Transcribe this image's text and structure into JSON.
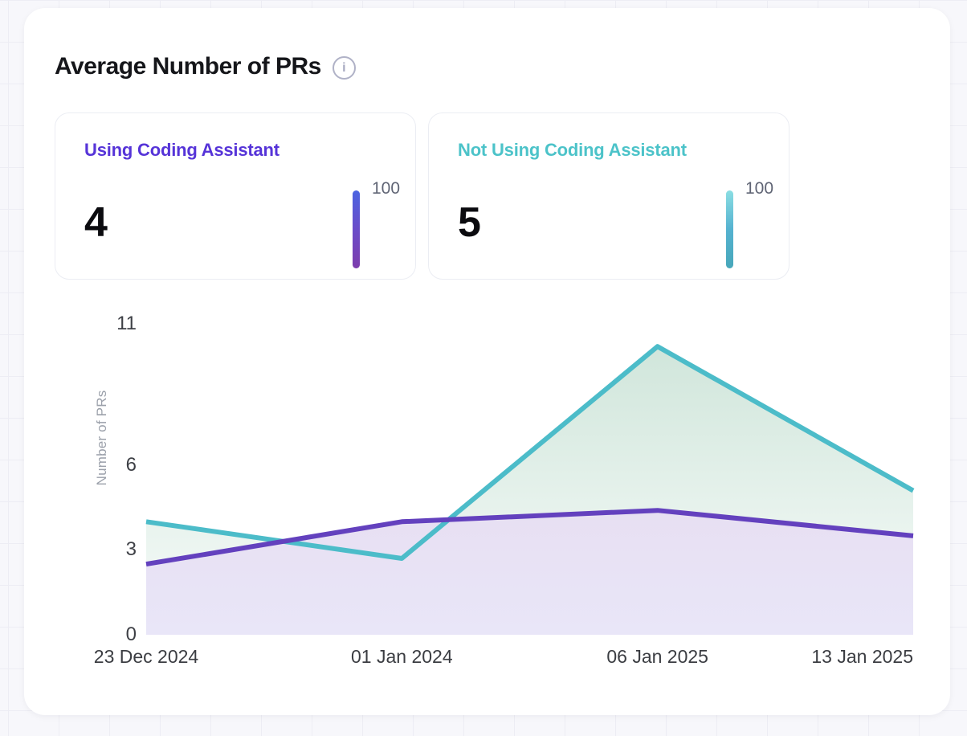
{
  "panel": {
    "title": "Average Number of PRs",
    "info_icon_glyph": "i"
  },
  "stat_cards": [
    {
      "label": "Using Coding Assistant",
      "value": "4",
      "scale_max_label": "100",
      "label_color": "#5634d8",
      "bar_gradient": [
        "#4b64e1",
        "#6a4cc9",
        "#7d3dad"
      ]
    },
    {
      "label": "Not Using Coding Assistant",
      "value": "5",
      "scale_max_label": "100",
      "label_color": "#4cc3c9",
      "bar_gradient": [
        "#8bdee3",
        "#55b2d0",
        "#47a7ba"
      ]
    }
  ],
  "chart_data": {
    "type": "area",
    "title": "Average Number of PRs",
    "xlabel": "",
    "ylabel": "Number of PRs",
    "categories": [
      "23 Dec 2024",
      "01 Jan 2024",
      "06 Jan 2025",
      "13 Jan 2025"
    ],
    "yticks": [
      0,
      3,
      6,
      11
    ],
    "ylim": [
      0,
      11
    ],
    "grid": false,
    "legend_position": "none",
    "series": [
      {
        "name": "Not Using Coding Assistant",
        "values": [
          4,
          2.7,
          10.2,
          5.1
        ],
        "line_color": "#4cbcc9",
        "fill_from": "#cfe5da",
        "fill_to": "#f8fcfa"
      },
      {
        "name": "Using Coding Assistant",
        "values": [
          2.5,
          4,
          4.4,
          3.5
        ],
        "line_color": "#6341be",
        "fill_from": "#e7dff2",
        "fill_to": "#e9e6f8"
      }
    ]
  }
}
